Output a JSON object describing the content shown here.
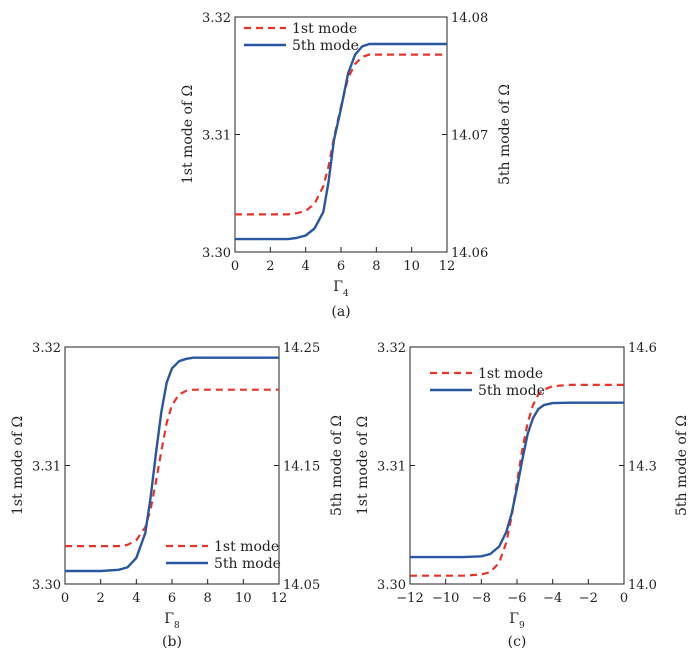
{
  "colors": {
    "mode1": "#e8332a",
    "mode5": "#2a56a0",
    "axis": "#222222"
  },
  "chart_data": [
    {
      "type": "line",
      "panel": "(a)",
      "xlabel": "Γ",
      "xlabel_sub": "4",
      "ylabel": "1st mode of  Ω",
      "y2label": "5th mode of Ω",
      "xlim": [
        0,
        12
      ],
      "ylim": [
        3.3,
        3.32
      ],
      "y2lim": [
        14.06,
        14.08
      ],
      "xticks": [
        0,
        2,
        4,
        6,
        8,
        10,
        12
      ],
      "xtick_labels": [
        "0",
        "2",
        "4",
        "6",
        "8",
        "10",
        "12"
      ],
      "yticks": [
        3.3,
        3.31,
        3.32
      ],
      "ytick_labels": [
        "3.30",
        "3.31",
        "3.32"
      ],
      "y2ticks": [
        14.06,
        14.07,
        14.08
      ],
      "y2tick_labels": [
        "14.06",
        "14.07",
        "14.08"
      ],
      "legend_placement": "top-left",
      "legend": [
        "1st mode",
        "5th mode"
      ],
      "series": [
        {
          "name": "1st mode",
          "axis": "left",
          "style": "dashed",
          "x": [
            0,
            1,
            2,
            3,
            3.5,
            4,
            4.5,
            5,
            5.3,
            5.6,
            6,
            6.4,
            6.8,
            7.2,
            7.6,
            8,
            9,
            10,
            11,
            12
          ],
          "y": [
            3.3032,
            3.3032,
            3.3032,
            3.3032,
            3.3033,
            3.3035,
            3.3041,
            3.3056,
            3.3073,
            3.3097,
            3.3124,
            3.3148,
            3.316,
            3.3166,
            3.3168,
            3.3168,
            3.3168,
            3.3168,
            3.3168,
            3.3168
          ]
        },
        {
          "name": "5th mode",
          "axis": "right",
          "style": "solid",
          "x": [
            0,
            1,
            2,
            3,
            3.5,
            4,
            4.5,
            5,
            5.3,
            5.6,
            6,
            6.4,
            6.8,
            7.2,
            7.6,
            8,
            9,
            10,
            11,
            12
          ],
          "y": [
            14.0611,
            14.0611,
            14.0611,
            14.0611,
            14.0612,
            14.0614,
            14.062,
            14.0634,
            14.066,
            14.0695,
            14.0722,
            14.0752,
            14.0768,
            14.0775,
            14.0777,
            14.0777,
            14.0777,
            14.0777,
            14.0777,
            14.0777
          ]
        }
      ]
    },
    {
      "type": "line",
      "panel": "(b)",
      "xlabel": "Γ",
      "xlabel_sub": "8",
      "ylabel": "1st mode of  Ω",
      "y2label": "5th mode of Ω",
      "xlim": [
        0,
        12
      ],
      "ylim": [
        3.3,
        3.32
      ],
      "y2lim": [
        14.05,
        14.25
      ],
      "xticks": [
        0,
        2,
        4,
        6,
        8,
        10,
        12
      ],
      "xtick_labels": [
        "0",
        "2",
        "4",
        "6",
        "8",
        "10",
        "12"
      ],
      "yticks": [
        3.3,
        3.31,
        3.32
      ],
      "ytick_labels": [
        "3.30",
        "3.31",
        "3.32"
      ],
      "y2ticks": [
        14.05,
        14.15,
        14.25
      ],
      "y2tick_labels": [
        "14.05",
        "14.15",
        "14.25"
      ],
      "legend_placement": "bottom-right",
      "legend": [
        "1st mode",
        "5th mode"
      ],
      "series": [
        {
          "name": "1st mode",
          "axis": "left",
          "style": "dashed",
          "x": [
            0,
            1,
            2,
            3,
            3.5,
            4,
            4.5,
            4.8,
            5.1,
            5.4,
            5.7,
            6,
            6.4,
            6.8,
            7.2,
            8,
            9,
            10,
            11,
            12
          ],
          "y": [
            3.3032,
            3.3032,
            3.3032,
            3.3032,
            3.3033,
            3.3037,
            3.3048,
            3.3063,
            3.3086,
            3.3112,
            3.3136,
            3.3151,
            3.316,
            3.3163,
            3.3164,
            3.3164,
            3.3164,
            3.3164,
            3.3164,
            3.3164
          ]
        },
        {
          "name": "5th mode",
          "axis": "right",
          "style": "solid",
          "x": [
            0,
            1,
            2,
            3,
            3.5,
            4,
            4.5,
            4.8,
            5.1,
            5.4,
            5.7,
            6,
            6.4,
            6.8,
            7.2,
            8,
            9,
            10,
            11,
            12
          ],
          "y": [
            14.061,
            14.061,
            14.061,
            14.062,
            14.064,
            14.072,
            14.093,
            14.123,
            14.16,
            14.195,
            14.22,
            14.232,
            14.238,
            14.24,
            14.241,
            14.241,
            14.241,
            14.241,
            14.241,
            14.241
          ]
        }
      ]
    },
    {
      "type": "line",
      "panel": "(c)",
      "xlabel": "Γ",
      "xlabel_sub": "9",
      "ylabel": "1st mode of  Ω",
      "y2label": "5th mode of  Ω",
      "xlim": [
        -12,
        0
      ],
      "ylim": [
        3.3,
        3.32
      ],
      "y2lim": [
        14.0,
        14.6
      ],
      "xticks": [
        -12,
        -10,
        -8,
        -6,
        -4,
        -2,
        0
      ],
      "xtick_labels": [
        "−12",
        "−10",
        "−8",
        "−6",
        "−4",
        "−2",
        "0"
      ],
      "yticks": [
        3.3,
        3.31,
        3.32
      ],
      "ytick_labels": [
        "3.30",
        "3.31",
        "3.32"
      ],
      "y2ticks": [
        14.0,
        14.3,
        14.6
      ],
      "y2tick_labels": [
        "14.0",
        "14.3",
        "14.6"
      ],
      "legend_placement": "top-left",
      "legend": [
        "1st mode",
        "5th mode"
      ],
      "series": [
        {
          "name": "1st mode",
          "axis": "left",
          "style": "dashed",
          "x": [
            -12,
            -11,
            -10,
            -9,
            -8,
            -7.5,
            -7,
            -6.6,
            -6.3,
            -6,
            -5.7,
            -5.4,
            -5.1,
            -4.8,
            -4.5,
            -4,
            -3,
            -2,
            -1,
            0
          ],
          "y": [
            3.3007,
            3.3007,
            3.3007,
            3.3007,
            3.3008,
            3.301,
            3.3018,
            3.3035,
            3.3057,
            3.3086,
            3.3114,
            3.3136,
            3.3151,
            3.316,
            3.3164,
            3.3167,
            3.3168,
            3.3168,
            3.3168,
            3.3168
          ]
        },
        {
          "name": "5th mode",
          "axis": "right",
          "style": "solid",
          "x": [
            -12,
            -11,
            -10,
            -9,
            -8,
            -7.5,
            -7,
            -6.6,
            -6.3,
            -6,
            -5.7,
            -5.4,
            -5.1,
            -4.8,
            -4.5,
            -4,
            -3,
            -2,
            -1,
            0
          ],
          "y": [
            14.068,
            14.068,
            14.068,
            14.068,
            14.07,
            14.076,
            14.095,
            14.132,
            14.178,
            14.243,
            14.316,
            14.38,
            14.42,
            14.443,
            14.453,
            14.458,
            14.459,
            14.459,
            14.459,
            14.459
          ]
        }
      ]
    }
  ]
}
